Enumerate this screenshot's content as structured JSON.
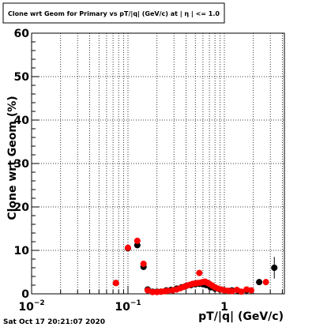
{
  "footer": {
    "timestamp": "Sat Oct 17 20:21:07 2020"
  },
  "chart_data": {
    "type": "scatter",
    "title": "Clone wrt Geom for Primary vs pT/|q| (GeV/c) at | η | <= 1.0",
    "xlabel": "pT/|q| (GeV/c)",
    "ylabel": "Clone wrt Geom (%)",
    "xscale": "log",
    "xlim": [
      0.01,
      4.2
    ],
    "ylim": [
      0,
      60
    ],
    "grid": true,
    "y_ticks": [
      {
        "value": 0,
        "label": "0"
      },
      {
        "value": 10,
        "label": "10"
      },
      {
        "value": 20,
        "label": "20"
      },
      {
        "value": 30,
        "label": "30"
      },
      {
        "value": 40,
        "label": "40"
      },
      {
        "value": 50,
        "label": "50"
      },
      {
        "value": 60,
        "label": "60"
      }
    ],
    "x_ticks_major": [
      {
        "value": 0.01,
        "label": "10",
        "exp": "−2"
      },
      {
        "value": 0.1,
        "label": "10",
        "exp": "−1"
      },
      {
        "value": 1,
        "label": "1",
        "exp": ""
      }
    ],
    "x_ticks_minor": [
      0.02,
      0.03,
      0.04,
      0.05,
      0.06,
      0.07,
      0.08,
      0.09,
      0.2,
      0.3,
      0.4,
      0.5,
      0.6,
      0.7,
      0.8,
      0.9,
      2,
      3,
      4
    ],
    "series": [
      {
        "color": "#000000",
        "points": [
          {
            "x": 0.075,
            "y": 2.5,
            "ey": 0.5
          },
          {
            "x": 0.1,
            "y": 10.5,
            "ey": 0.5
          },
          {
            "x": 0.125,
            "y": 11.2,
            "ey": 0.6
          },
          {
            "x": 0.145,
            "y": 6.2,
            "ey": 0.5
          },
          {
            "x": 0.16,
            "y": 1.0,
            "ey": 0.2
          },
          {
            "x": 0.18,
            "y": 0.5,
            "ey": 0.1
          },
          {
            "x": 0.2,
            "y": 0.5,
            "ey": 0.1
          },
          {
            "x": 0.22,
            "y": 0.5,
            "ey": 0.1
          },
          {
            "x": 0.25,
            "y": 0.8,
            "ey": 0.2
          },
          {
            "x": 0.28,
            "y": 0.9,
            "ey": 0.2
          },
          {
            "x": 0.32,
            "y": 1.2,
            "ey": 0.2
          },
          {
            "x": 0.36,
            "y": 1.5,
            "ey": 0.3
          },
          {
            "x": 0.4,
            "y": 1.8,
            "ey": 0.3
          },
          {
            "x": 0.45,
            "y": 2.0,
            "ey": 0.3
          },
          {
            "x": 0.5,
            "y": 2.2,
            "ey": 0.3
          },
          {
            "x": 0.55,
            "y": 2.3,
            "ey": 0.3
          },
          {
            "x": 0.6,
            "y": 2.2,
            "ey": 0.3
          },
          {
            "x": 0.65,
            "y": 2.0,
            "ey": 0.3
          },
          {
            "x": 0.72,
            "y": 1.5,
            "ey": 0.3
          },
          {
            "x": 0.8,
            "y": 1.2,
            "ey": 0.3
          },
          {
            "x": 0.9,
            "y": 1.0,
            "ey": 0.3
          },
          {
            "x": 1.0,
            "y": 0.8,
            "ey": 0.3
          },
          {
            "x": 1.2,
            "y": 0.8,
            "ey": 0.3
          },
          {
            "x": 1.4,
            "y": 0.6,
            "ey": 0.3
          },
          {
            "x": 1.7,
            "y": 0.8,
            "ey": 0.4
          },
          {
            "x": 2.3,
            "y": 2.7,
            "ey": 0.6
          },
          {
            "x": 3.3,
            "y": 6.0,
            "ey": 2.5
          }
        ]
      },
      {
        "color": "#ff0000",
        "points": [
          {
            "x": 0.075,
            "y": 2.5,
            "ey": 0.4
          },
          {
            "x": 0.1,
            "y": 10.6,
            "ey": 0.5
          },
          {
            "x": 0.125,
            "y": 12.2,
            "ey": 0.6
          },
          {
            "x": 0.145,
            "y": 6.9,
            "ey": 0.5
          },
          {
            "x": 0.16,
            "y": 0.8,
            "ey": 0.2
          },
          {
            "x": 0.18,
            "y": 0.4,
            "ey": 0.1
          },
          {
            "x": 0.2,
            "y": 0.4,
            "ey": 0.1
          },
          {
            "x": 0.22,
            "y": 0.5,
            "ey": 0.1
          },
          {
            "x": 0.24,
            "y": 0.6,
            "ey": 0.1
          },
          {
            "x": 0.26,
            "y": 0.7,
            "ey": 0.2
          },
          {
            "x": 0.29,
            "y": 0.8,
            "ey": 0.2
          },
          {
            "x": 0.32,
            "y": 1.0,
            "ey": 0.2
          },
          {
            "x": 0.35,
            "y": 1.3,
            "ey": 0.3
          },
          {
            "x": 0.38,
            "y": 1.6,
            "ey": 0.3
          },
          {
            "x": 0.41,
            "y": 1.9,
            "ey": 0.3
          },
          {
            "x": 0.44,
            "y": 2.1,
            "ey": 0.3
          },
          {
            "x": 0.47,
            "y": 2.3,
            "ey": 0.3
          },
          {
            "x": 0.5,
            "y": 2.4,
            "ey": 0.4
          },
          {
            "x": 0.53,
            "y": 2.5,
            "ey": 0.4
          },
          {
            "x": 0.55,
            "y": 4.8,
            "ey": 0.5
          },
          {
            "x": 0.57,
            "y": 2.6,
            "ey": 0.4
          },
          {
            "x": 0.6,
            "y": 2.7,
            "ey": 0.4
          },
          {
            "x": 0.63,
            "y": 2.8,
            "ey": 0.4
          },
          {
            "x": 0.66,
            "y": 2.6,
            "ey": 0.4
          },
          {
            "x": 0.7,
            "y": 2.3,
            "ey": 0.4
          },
          {
            "x": 0.75,
            "y": 1.9,
            "ey": 0.4
          },
          {
            "x": 0.8,
            "y": 1.5,
            "ey": 0.4
          },
          {
            "x": 0.86,
            "y": 1.2,
            "ey": 0.4
          },
          {
            "x": 0.93,
            "y": 1.0,
            "ey": 0.4
          },
          {
            "x": 1.0,
            "y": 0.8,
            "ey": 0.4
          },
          {
            "x": 1.1,
            "y": 0.7,
            "ey": 0.4
          },
          {
            "x": 1.2,
            "y": 0.6,
            "ey": 0.4
          },
          {
            "x": 1.35,
            "y": 0.9,
            "ey": 0.4
          },
          {
            "x": 1.5,
            "y": 0.5,
            "ey": 0.4
          },
          {
            "x": 1.7,
            "y": 1.0,
            "ey": 0.5
          },
          {
            "x": 1.9,
            "y": 0.8,
            "ey": 0.5
          },
          {
            "x": 2.7,
            "y": 2.7,
            "ey": 0.7
          }
        ]
      }
    ]
  }
}
